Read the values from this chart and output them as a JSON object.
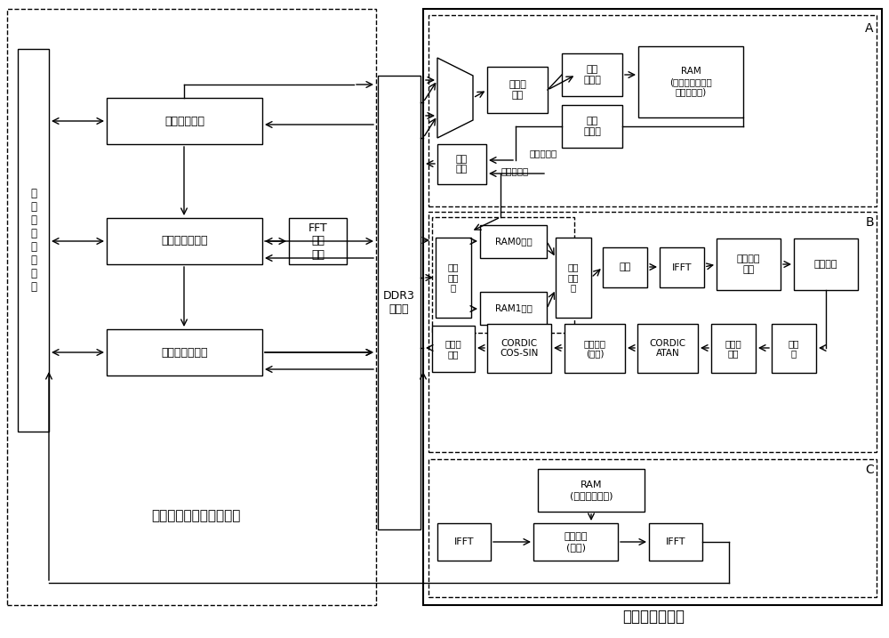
{
  "bg_color": "#ffffff",
  "title_left": "极坐标格式成像算法单元",
  "title_right": "自聚焦处理模块",
  "label_radar": "雷\n达\n参\n数\n计\n算\n模\n块",
  "label_ddr3": "DDR3\n控制器",
  "box_buchang": "补偿处理模块",
  "box_julixiang": "距离向处理模块",
  "box_fangweixiang": "方位向处理模块",
  "box_fft": "FFT\n计算\n模块",
  "box_mux": "MUX",
  "box_qumo": "取模的\n平方",
  "box_qiuqv1": "求取\n最大值",
  "box_qiuqv2": "求取\n最大值",
  "box_ram_a": "RAM\n(存储方位最强点\n位置及能量)",
  "box_addr": "地址\n解码",
  "label_juli_idx": "距离向索引",
  "label_fangwei_idx": "方位向索引",
  "box_ram0": "RAM0缓存",
  "box_ram1": "RAM1缓存",
  "box_output_sel": "输出\n流选\n择",
  "box_input_sel": "输入\n流选\n择",
  "box_jiachuan": "加窗",
  "box_ifft_b": "IFFT",
  "box_guji": "估计相位\n梯度",
  "box_tidu_sum": "梯度求和",
  "box_dingdian": "定点转\n浮点",
  "box_cordic_cs": "CORDIC\nCOS-SIN",
  "box_jifen": "相位积分\n(求和)",
  "box_cordic_atan": "CORDIC\nATAN",
  "box_fudian": "浮点转\n定点",
  "box_guiyi": "归一\n化",
  "box_ram_c": "RAM\n(存储相位误差)",
  "box_xiang_buchangC": "相位补偿\n(复乘)",
  "box_ifft_c1": "IFFT",
  "box_ifft_c2": "IFFT",
  "label_A": "A",
  "label_B": "B",
  "label_C": "C"
}
